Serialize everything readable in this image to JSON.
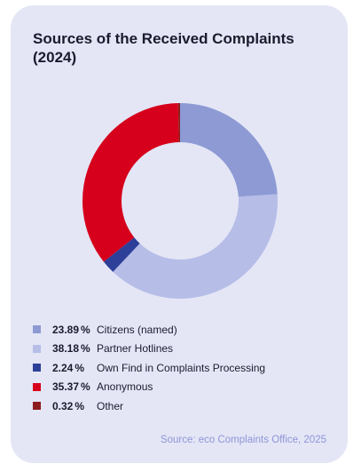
{
  "chart_data": {
    "type": "pie",
    "title": "Sources of the Received Complaints (2024)",
    "unit": "%",
    "series": [
      {
        "name": "Citizens (named)",
        "value": 23.89,
        "value_label": "23.89",
        "color": "#8d9ad4"
      },
      {
        "name": "Partner Hotlines",
        "value": 38.18,
        "value_label": "38.18",
        "color": "#b6bde7"
      },
      {
        "name": "Own Find in Complaints Processing",
        "value": 2.24,
        "value_label": "2.24",
        "color": "#2d3f98"
      },
      {
        "name": "Anonymous",
        "value": 35.37,
        "value_label": "35.37",
        "color": "#d6001c"
      },
      {
        "name": "Other",
        "value": 0.32,
        "value_label": "0.32",
        "color": "#8c1c1c"
      }
    ],
    "legend_position": "bottom",
    "source": "Source: eco Complaints Office, 2025"
  },
  "card_background": "#e4e6f6"
}
